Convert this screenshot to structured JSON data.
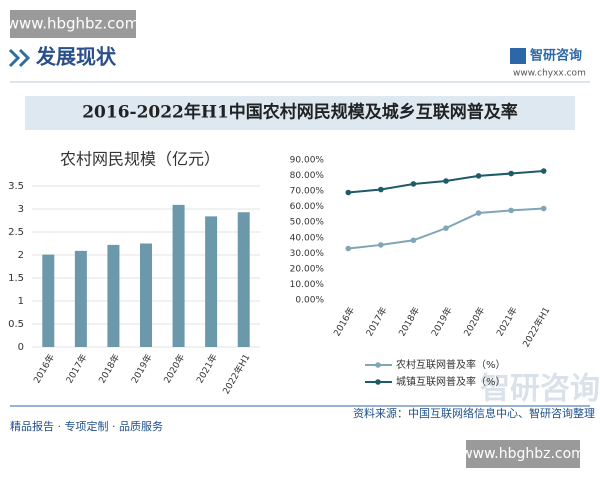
{
  "header": {
    "section": "发展现状",
    "brand": "智研咨询",
    "brand_url": "www.chyxx.com",
    "watermark": "www.hbghbz.com",
    "main_title": "2016-2022年H1中国农村网民规模及城乡互联网普及率"
  },
  "chart_data": [
    {
      "type": "bar",
      "title": "农村网民规模（亿元）",
      "categories": [
        "2016年",
        "2017年",
        "2018年",
        "2019年",
        "2020年",
        "2021年",
        "2022年H1"
      ],
      "values": [
        2.01,
        2.09,
        2.22,
        2.25,
        3.09,
        2.84,
        2.93
      ],
      "color": "#6b98ab",
      "ylim": [
        0,
        3.5
      ],
      "yticks": [
        0,
        0.5,
        1,
        1.5,
        2,
        2.5,
        3,
        3.5
      ],
      "grid": true
    },
    {
      "type": "line",
      "categories": [
        "2016年",
        "2017年",
        "2018年",
        "2019年",
        "2020年",
        "2021年",
        "2022年H1"
      ],
      "series": [
        {
          "name": "农村互联网普及率（%）",
          "color": "#7ea6b6",
          "values": [
            33.1,
            35.4,
            38.4,
            46.2,
            55.9,
            57.6,
            58.8
          ]
        },
        {
          "name": "城镇互联网普及率（%）",
          "color": "#1d5a6a",
          "values": [
            69.1,
            71.0,
            74.6,
            76.5,
            79.8,
            81.3,
            82.9
          ]
        }
      ],
      "ylim": [
        0,
        90
      ],
      "yticks": [
        {
          "value": 0,
          "label": "0.00%"
        },
        {
          "value": 10,
          "label": "10.00%"
        },
        {
          "value": 20,
          "label": "20.00%"
        },
        {
          "value": 30,
          "label": "30.00%"
        },
        {
          "value": 40,
          "label": "40.00%"
        },
        {
          "value": 50,
          "label": "50.00%"
        },
        {
          "value": 60,
          "label": "60.00%"
        },
        {
          "value": 70,
          "label": "70.00%"
        },
        {
          "value": 80,
          "label": "80.00%"
        },
        {
          "value": 90,
          "label": "90.00%"
        }
      ],
      "grid": false
    }
  ],
  "footer": {
    "slogan": "精品报告 · 专项定制 · 品质服务",
    "source": "资料来源：中国互联网络信息中心、智研咨询整理",
    "big_brand": "智研咨询",
    "watermark": "www.hbghbz.com"
  }
}
